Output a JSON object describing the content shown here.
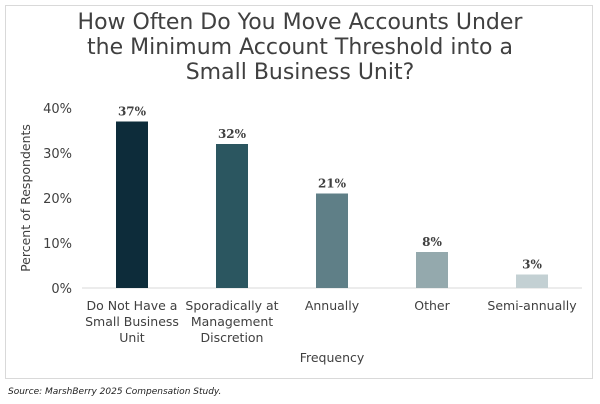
{
  "chart_data": {
    "type": "bar",
    "title": "How Often Do You Move Accounts Under\nthe Minimum Account Threshold into a\nSmall Business Unit?",
    "xlabel": "Frequency",
    "ylabel": "Percent of Respondents",
    "ylim": [
      0,
      40
    ],
    "yticks": [
      "0%",
      "10%",
      "20%",
      "30%",
      "40%"
    ],
    "yticks_values": [
      0,
      10,
      20,
      30,
      40
    ],
    "grid": false,
    "categories": [
      "Do Not Have a Small Business Unit",
      "Sporadically at Management Discretion",
      "Annually",
      "Other",
      "Semi-annually"
    ],
    "category_lines": [
      [
        "Do Not Have a",
        "Small Business",
        "Unit"
      ],
      [
        "Sporadically at",
        "Management",
        "Discretion"
      ],
      [
        "Annually"
      ],
      [
        "Other"
      ],
      [
        "Semi-annually"
      ]
    ],
    "values": [
      37,
      32,
      21,
      8,
      3
    ],
    "data_labels": [
      "37%",
      "32%",
      "21%",
      "8%",
      "3%"
    ],
    "bar_colors": [
      "#0d2c3a",
      "#2b5660",
      "#5f7f87",
      "#94a9ad",
      "#c3d0d3"
    ]
  },
  "source": "Source: MarshBerry 2025 Compensation Study."
}
